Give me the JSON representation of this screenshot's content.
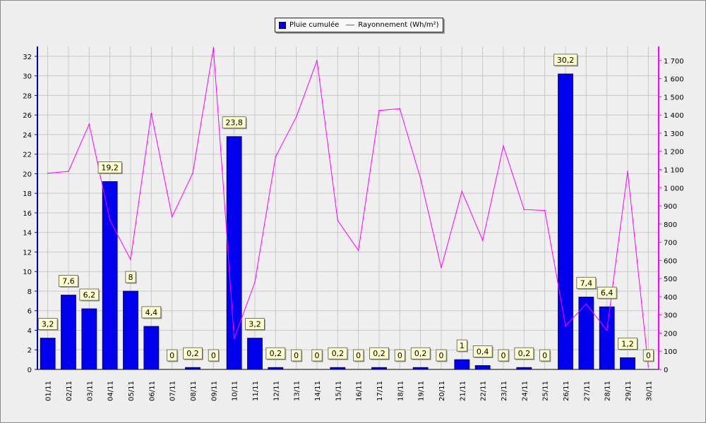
{
  "chart_data": {
    "type": "bar",
    "categories": [
      "01/11",
      "02/11",
      "03/11",
      "04/11",
      "05/11",
      "06/11",
      "07/11",
      "08/11",
      "09/11",
      "10/11",
      "11/11",
      "12/11",
      "13/11",
      "14/11",
      "15/11",
      "16/11",
      "17/11",
      "18/11",
      "19/11",
      "20/11",
      "21/11",
      "22/11",
      "23/11",
      "24/11",
      "25/11",
      "26/11",
      "27/11",
      "28/11",
      "29/11",
      "30/11"
    ],
    "series": [
      {
        "name": "Pluie cumulée",
        "kind": "bar",
        "axis": "left",
        "color": "#0000ee",
        "values": [
          3.2,
          7.6,
          6.2,
          19.2,
          8,
          4.4,
          0,
          0.2,
          0,
          23.8,
          3.2,
          0.2,
          0,
          0,
          0.2,
          0,
          0.2,
          0,
          0.2,
          0,
          1,
          0.4,
          0,
          0.2,
          0,
          30.2,
          7.4,
          6.4,
          1.2,
          0
        ],
        "labels": [
          "3,2",
          "7,6",
          "6,2",
          "19,2",
          "8",
          "4,4",
          "0",
          "0,2",
          "0",
          "23,8",
          "3,2",
          "0,2",
          "0",
          "0",
          "0,2",
          "0",
          "0,2",
          "0",
          "0,2",
          "0",
          "1",
          "0,4",
          "0",
          "0,2",
          "0",
          "30,2",
          "7,4",
          "6,4",
          "1,2",
          "0"
        ]
      },
      {
        "name": "Rayonnement (Wh/m²)",
        "kind": "line",
        "axis": "right",
        "color": "#ff00ff",
        "values": [
          1080,
          1090,
          1350,
          820,
          605,
          1410,
          840,
          1080,
          1770,
          170,
          480,
          1170,
          1390,
          1700,
          820,
          655,
          1425,
          1435,
          1050,
          560,
          980,
          710,
          1230,
          880,
          875,
          240,
          360,
          215,
          1090,
          15
        ]
      }
    ],
    "y_left": {
      "ylim": [
        0,
        33
      ],
      "ticks": [
        0,
        2,
        4,
        6,
        8,
        10,
        12,
        14,
        16,
        18,
        20,
        22,
        24,
        26,
        28,
        30,
        32
      ]
    },
    "y_right": {
      "ylim": [
        0,
        1777
      ],
      "ticks": [
        0,
        100,
        200,
        300,
        400,
        500,
        600,
        700,
        800,
        900,
        1000,
        1100,
        1200,
        1300,
        1400,
        1500,
        1600,
        1700
      ],
      "tick_labels": [
        "0",
        "100",
        "200",
        "300",
        "400",
        "500",
        "600",
        "700",
        "800",
        "900",
        "1 000",
        "1 100",
        "1 200",
        "1 300",
        "1 400",
        "1 500",
        "1 600",
        "1 700"
      ]
    },
    "grid": true,
    "legend_position": "top-center",
    "colors": {
      "background": "#eeeeee",
      "grid": "#c8c8c8",
      "left_axis": "#0000aa",
      "right_axis": "#ff00ff",
      "label_box": "#ffffcc"
    }
  }
}
